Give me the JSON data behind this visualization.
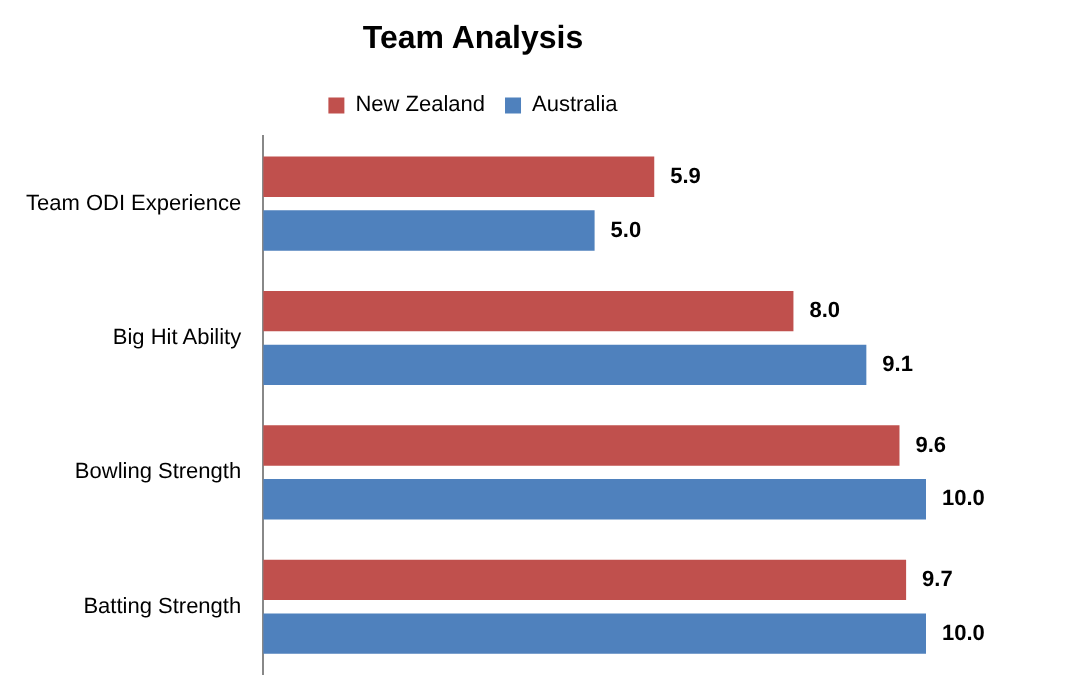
{
  "chart_data": {
    "type": "bar",
    "orientation": "horizontal",
    "title": "Team Analysis",
    "categories": [
      "Team ODI Experience",
      "Big Hit Ability",
      "Bowling Strength",
      "Batting Strength"
    ],
    "series": [
      {
        "name": "New Zealand",
        "color": "#c0504d",
        "values": [
          5.9,
          8.0,
          9.6,
          9.7
        ],
        "value_labels": [
          "5.9",
          "8.0",
          "9.6",
          "9.7"
        ]
      },
      {
        "name": "Australia",
        "color": "#4f81bd",
        "values": [
          5.0,
          9.1,
          10.0,
          10.0
        ],
        "value_labels": [
          "5.0",
          "9.1",
          "10.0",
          "10.0"
        ]
      }
    ],
    "legend": "top"
  }
}
